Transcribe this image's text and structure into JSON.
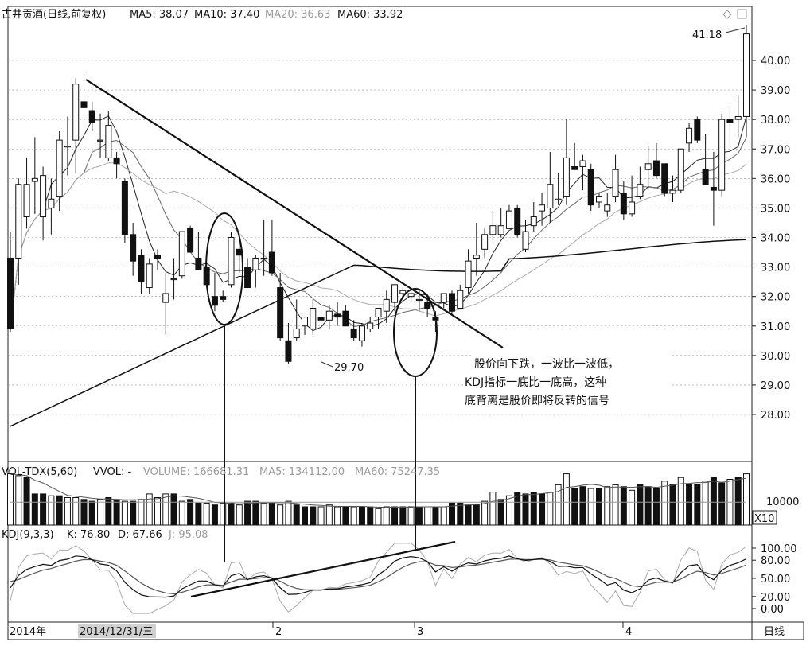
{
  "main_header": {
    "title": "古井贡酒(日线,前复权)",
    "ma5": "MA5: 38.07",
    "ma10": "MA10: 37.40",
    "ma20": "MA20: 36.63",
    "ma60": "MA60: 33.92"
  },
  "vol_header": {
    "title": "VOL-TDX(5,60)",
    "vvol": "VVOL: -",
    "volume": "VOLUME: 166681.31",
    "ma5": "MA5: 134112.00",
    "ma60": "MA60: 75247.35"
  },
  "kdj_header": {
    "title": "KDJ(9,3,3)",
    "k": "K: 76.80",
    "d": "D: 67.66",
    "j": "J: 95.08"
  },
  "bottom_bar": {
    "year": "2014年",
    "date": "2014/12/31/三",
    "m2": "2",
    "m3": "3",
    "m4": "4",
    "period": "日线"
  },
  "vol_scale": {
    "tick": "10000",
    "multiplier": "X10"
  },
  "annotation": {
    "line1": "股价向下跌，一波比一波低，",
    "line2": "KDJ指标一底比一底高，这种",
    "line3": "底背离是股价即将反转的信号"
  },
  "chart_data": {
    "type": "candlestick",
    "price_axis": {
      "ylim": [
        27.3,
        41.6
      ],
      "ticks": [
        "28.00",
        "29.00",
        "30.00",
        "31.00",
        "32.00",
        "33.00",
        "34.00",
        "35.00",
        "36.00",
        "37.00",
        "38.00",
        "39.00",
        "40.00"
      ]
    },
    "kdj_axis": {
      "ylim": [
        -10,
        110
      ],
      "ticks": [
        "100.00",
        "80.00",
        "50.00",
        "20.00",
        "0.00"
      ]
    },
    "labels": {
      "high": "41.18",
      "low": "29.70"
    },
    "candles": [
      [
        33.3,
        34.2,
        30.8,
        30.9
      ],
      [
        33.3,
        36.0,
        32.4,
        35.8
      ],
      [
        34.7,
        36.7,
        34.3,
        35.8
      ],
      [
        35.9,
        37.4,
        34.8,
        36.0
      ],
      [
        34.7,
        36.4,
        33.9,
        36.1
      ],
      [
        35.0,
        36.0,
        34.1,
        35.3
      ],
      [
        35.4,
        37.6,
        34.9,
        37.3
      ],
      [
        37.1,
        38.1,
        36.1,
        37.1
      ],
      [
        37.3,
        39.4,
        36.2,
        39.2
      ],
      [
        38.6,
        39.6,
        37.5,
        38.4
      ],
      [
        38.3,
        38.6,
        37.6,
        37.9
      ],
      [
        37.3,
        38.2,
        36.7,
        37.3
      ],
      [
        36.7,
        38.3,
        36.6,
        37.8
      ],
      [
        36.7,
        36.9,
        36.0,
        36.5
      ],
      [
        35.9,
        36.0,
        33.8,
        34.1
      ],
      [
        34.1,
        34.5,
        32.7,
        33.2
      ],
      [
        33.4,
        33.6,
        32.1,
        32.5
      ],
      [
        32.3,
        33.3,
        32.1,
        33.1
      ],
      [
        33.4,
        33.6,
        32.9,
        33.3
      ],
      [
        31.8,
        32.8,
        30.7,
        32.1
      ],
      [
        32.6,
        33.3,
        31.9,
        32.6
      ],
      [
        32.7,
        34.1,
        32.6,
        34.2
      ],
      [
        34.3,
        34.4,
        33.5,
        33.5
      ],
      [
        33.3,
        34.2,
        32.9,
        32.9
      ],
      [
        33.0,
        33.1,
        32.3,
        32.4
      ],
      [
        32.0,
        32.8,
        31.5,
        31.7
      ],
      [
        32.0,
        32.2,
        31.8,
        31.9
      ],
      [
        32.4,
        34.2,
        32.3,
        34.0
      ],
      [
        33.6,
        34.1,
        32.8,
        33.4
      ],
      [
        33.0,
        33.3,
        32.4,
        32.3
      ],
      [
        32.9,
        33.4,
        32.3,
        33.3
      ],
      [
        33.3,
        34.6,
        32.7,
        33.3
      ],
      [
        33.5,
        34.6,
        32.7,
        32.8
      ],
      [
        32.3,
        32.8,
        30.5,
        30.6
      ],
      [
        30.5,
        31.1,
        29.7,
        29.8
      ],
      [
        30.6,
        31.9,
        30.5,
        30.9
      ],
      [
        31.0,
        31.2,
        30.7,
        31.3
      ],
      [
        30.9,
        31.9,
        30.7,
        31.6
      ],
      [
        31.3,
        31.6,
        31.1,
        31.2
      ],
      [
        31.2,
        31.7,
        30.9,
        31.5
      ],
      [
        31.4,
        31.8,
        31.0,
        31.3
      ],
      [
        31.5,
        31.7,
        31.0,
        31.0
      ],
      [
        30.9,
        31.2,
        30.5,
        30.6
      ],
      [
        30.5,
        31.1,
        30.3,
        31.0
      ],
      [
        30.9,
        31.3,
        30.8,
        31.1
      ],
      [
        31.3,
        31.6,
        30.9,
        31.6
      ],
      [
        31.5,
        32.2,
        31.1,
        31.9
      ],
      [
        31.8,
        32.3,
        31.5,
        32.4
      ],
      [
        32.1,
        32.3,
        31.8,
        32.2
      ],
      [
        32.0,
        32.2,
        31.8,
        32.1
      ],
      [
        31.9,
        32.2,
        31.5,
        31.9
      ],
      [
        31.8,
        32.1,
        31.3,
        31.6
      ],
      [
        31.3,
        31.5,
        30.8,
        31.2
      ],
      [
        31.8,
        32.1,
        31.6,
        32.1
      ],
      [
        32.1,
        32.2,
        31.4,
        31.5
      ],
      [
        31.6,
        32.4,
        31.6,
        32.2
      ],
      [
        32.3,
        33.6,
        32.1,
        33.2
      ],
      [
        33.3,
        34.5,
        32.7,
        33.4
      ],
      [
        33.6,
        34.3,
        33.3,
        34.1
      ],
      [
        34.1,
        34.9,
        33.9,
        34.4
      ],
      [
        34.1,
        35.0,
        34.0,
        34.4
      ],
      [
        34.3,
        35.1,
        34.3,
        34.9
      ],
      [
        35.0,
        35.1,
        34.0,
        34.1
      ],
      [
        33.6,
        34.6,
        33.5,
        34.2
      ],
      [
        34.4,
        35.2,
        34.2,
        34.7
      ],
      [
        34.9,
        35.5,
        34.4,
        35.1
      ],
      [
        35.0,
        36.9,
        34.5,
        35.8
      ],
      [
        35.3,
        36.2,
        35.1,
        35.3
      ],
      [
        35.4,
        38.0,
        35.1,
        36.7
      ],
      [
        36.4,
        37.2,
        36.3,
        36.3
      ],
      [
        36.4,
        36.8,
        35.6,
        36.6
      ],
      [
        36.3,
        36.5,
        34.9,
        35.1
      ],
      [
        35.2,
        35.5,
        35.0,
        35.4
      ],
      [
        34.9,
        35.5,
        34.7,
        35.1
      ],
      [
        35.4,
        36.8,
        35.2,
        36.3
      ],
      [
        35.5,
        35.9,
        34.6,
        34.8
      ],
      [
        34.8,
        36.1,
        34.7,
        35.2
      ],
      [
        35.4,
        36.4,
        35.3,
        35.8
      ],
      [
        36.3,
        37.1,
        35.6,
        36.5
      ],
      [
        36.6,
        37.2,
        36.0,
        36.1
      ],
      [
        36.5,
        36.5,
        35.4,
        35.5
      ],
      [
        35.5,
        36.1,
        35.2,
        35.6
      ],
      [
        35.6,
        37.0,
        35.5,
        37.0
      ],
      [
        37.2,
        37.9,
        36.9,
        37.7
      ],
      [
        38.0,
        38.1,
        37.2,
        37.3
      ],
      [
        36.3,
        37.5,
        35.9,
        35.8
      ],
      [
        35.7,
        36.9,
        34.4,
        35.6
      ],
      [
        35.6,
        38.2,
        35.4,
        38.0
      ],
      [
        38.0,
        38.4,
        37.0,
        37.9
      ],
      [
        38.0,
        38.8,
        37.4,
        38.1
      ],
      [
        38.1,
        41.2,
        37.4,
        40.9
      ]
    ],
    "volumes": [
      0.28,
      0.27,
      0.26,
      0.17,
      0.17,
      0.16,
      0.16,
      0.15,
      0.15,
      0.14,
      0.13,
      0.14,
      0.15,
      0.14,
      0.13,
      0.13,
      0.14,
      0.17,
      0.15,
      0.17,
      0.17,
      0.13,
      0.14,
      0.12,
      0.12,
      0.11,
      0.12,
      0.12,
      0.11,
      0.13,
      0.13,
      0.12,
      0.12,
      0.11,
      0.13,
      0.11,
      0.1,
      0.1,
      0.1,
      0.11,
      0.1,
      0.1,
      0.1,
      0.1,
      0.1,
      0.09,
      0.1,
      0.1,
      0.1,
      0.1,
      0.1,
      0.1,
      0.1,
      0.1,
      0.12,
      0.12,
      0.11,
      0.11,
      0.13,
      0.18,
      0.14,
      0.16,
      0.18,
      0.17,
      0.18,
      0.17,
      0.18,
      0.22,
      0.28,
      0.2,
      0.21,
      0.2,
      0.2,
      0.21,
      0.22,
      0.21,
      0.19,
      0.22,
      0.21,
      0.2,
      0.24,
      0.22,
      0.26,
      0.22,
      0.22,
      0.24,
      0.26,
      0.23,
      0.25,
      0.26,
      0.28
    ],
    "vol_colors": "0011101001101101000010110101011010011100010110011010101111001011110001101001011101011011010"
  }
}
